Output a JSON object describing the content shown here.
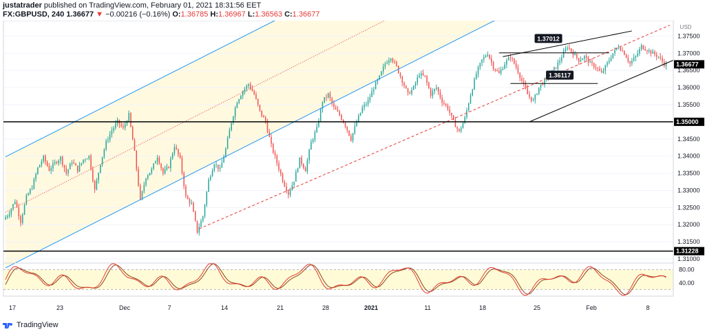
{
  "header": {
    "author": "justatrader",
    "published": "published on TradingView.com, February 01, 2021 18:31:56 EET",
    "symbol": "FX:GBPUSD, 240",
    "last": "1.36677",
    "change_arrow": "▼",
    "change": "−0.00216 (−0.16%)",
    "o_label": "O:",
    "o_value": "1.36785",
    "h_label": "H:",
    "h_value": "1.36967",
    "l_label": "L:",
    "l_value": "1.36563",
    "c_label": "C:",
    "c_value": "1.36677"
  },
  "brand": "TradingView",
  "colors": {
    "up": "#26a69a",
    "down": "#ef5350",
    "channel": "#2196f3",
    "channel_fill": "#fff9e0",
    "stoch_fill": "#fffbd6",
    "stoch_k": "#e53935",
    "stoch_d": "#8b4513",
    "dashed": "#e53935"
  },
  "chart_data": {
    "type": "candlestick",
    "symbol": "FX:GBPUSD",
    "interval": "240",
    "price_axis_unit": "USD",
    "y_ticks": [
      1.375,
      1.37,
      1.365,
      1.36,
      1.355,
      1.35,
      1.345,
      1.34,
      1.335,
      1.33,
      1.325,
      1.32,
      1.315,
      1.31
    ],
    "y_tick_labels": [
      "1.37500",
      "1.37000",
      "1.36500",
      "1.36000",
      "1.35500",
      "1.35000",
      "1.34500",
      "1.34000",
      "1.33500",
      "1.33000",
      "1.32500",
      "1.32000",
      "1.31500",
      "1.31000"
    ],
    "ylim": [
      1.3092,
      1.3795
    ],
    "x_ticks": [
      "17",
      "23",
      "Dec",
      "7",
      "14",
      "21",
      "28",
      "2021",
      "11",
      "18",
      "25",
      "Feb",
      "8"
    ],
    "price_path": [
      [
        0,
        1.3215
      ],
      [
        3,
        1.3235
      ],
      [
        6,
        1.327
      ],
      [
        9,
        1.321
      ],
      [
        12,
        1.328
      ],
      [
        15,
        1.331
      ],
      [
        18,
        1.3365
      ],
      [
        21,
        1.3395
      ],
      [
        24,
        1.336
      ],
      [
        27,
        1.338
      ],
      [
        30,
        1.3395
      ],
      [
        33,
        1.335
      ],
      [
        36,
        1.3385
      ],
      [
        39,
        1.336
      ],
      [
        42,
        1.339
      ],
      [
        45,
        1.34
      ],
      [
        48,
        1.33
      ],
      [
        51,
        1.338
      ],
      [
        54,
        1.344
      ],
      [
        57,
        1.3475
      ],
      [
        60,
        1.35
      ],
      [
        63,
        1.348
      ],
      [
        66,
        1.352
      ],
      [
        69,
        1.341
      ],
      [
        72,
        1.327
      ],
      [
        75,
        1.334
      ],
      [
        78,
        1.336
      ],
      [
        81,
        1.34
      ],
      [
        84,
        1.335
      ],
      [
        87,
        1.337
      ],
      [
        90,
        1.343
      ],
      [
        93,
        1.339
      ],
      [
        96,
        1.328
      ],
      [
        99,
        1.326
      ],
      [
        102,
        1.318
      ],
      [
        105,
        1.3225
      ],
      [
        108,
        1.333
      ],
      [
        111,
        1.338
      ],
      [
        114,
        1.336
      ],
      [
        117,
        1.342
      ],
      [
        120,
        1.35
      ],
      [
        123,
        1.356
      ],
      [
        126,
        1.359
      ],
      [
        129,
        1.361
      ],
      [
        132,
        1.358
      ],
      [
        135,
        1.353
      ],
      [
        138,
        1.35
      ],
      [
        141,
        1.343
      ],
      [
        144,
        1.338
      ],
      [
        147,
        1.333
      ],
      [
        150,
        1.329
      ],
      [
        153,
        1.333
      ],
      [
        156,
        1.339
      ],
      [
        159,
        1.336
      ],
      [
        162,
        1.344
      ],
      [
        165,
        1.348
      ],
      [
        168,
        1.356
      ],
      [
        171,
        1.358
      ],
      [
        174,
        1.354
      ],
      [
        177,
        1.352
      ],
      [
        180,
        1.349
      ],
      [
        183,
        1.345
      ],
      [
        186,
        1.35
      ],
      [
        189,
        1.354
      ],
      [
        192,
        1.356
      ],
      [
        195,
        1.36
      ],
      [
        198,
        1.363
      ],
      [
        201,
        1.367
      ],
      [
        204,
        1.369
      ],
      [
        207,
        1.366
      ],
      [
        210,
        1.362
      ],
      [
        213,
        1.358
      ],
      [
        216,
        1.36
      ],
      [
        219,
        1.364
      ],
      [
        222,
        1.363
      ],
      [
        225,
        1.358
      ],
      [
        228,
        1.36
      ],
      [
        231,
        1.356
      ],
      [
        234,
        1.354
      ],
      [
        237,
        1.35
      ],
      [
        240,
        1.347
      ],
      [
        243,
        1.351
      ],
      [
        246,
        1.358
      ],
      [
        249,
        1.364
      ],
      [
        252,
        1.368
      ],
      [
        255,
        1.37
      ],
      [
        258,
        1.366
      ],
      [
        261,
        1.364
      ],
      [
        264,
        1.367
      ],
      [
        267,
        1.369
      ],
      [
        270,
        1.366
      ],
      [
        273,
        1.362
      ],
      [
        276,
        1.358
      ],
      [
        279,
        1.356
      ],
      [
        282,
        1.36
      ],
      [
        285,
        1.362
      ],
      [
        288,
        1.364
      ],
      [
        291,
        1.366
      ],
      [
        294,
        1.369
      ],
      [
        297,
        1.372
      ],
      [
        300,
        1.37
      ],
      [
        303,
        1.368
      ],
      [
        306,
        1.369
      ],
      [
        309,
        1.367
      ],
      [
        312,
        1.366
      ],
      [
        315,
        1.364
      ],
      [
        318,
        1.367
      ],
      [
        321,
        1.37
      ],
      [
        324,
        1.372
      ],
      [
        327,
        1.37
      ],
      [
        330,
        1.367
      ],
      [
        333,
        1.369
      ],
      [
        336,
        1.372
      ],
      [
        339,
        1.371
      ],
      [
        342,
        1.37
      ],
      [
        345,
        1.369
      ],
      [
        348,
        1.3668
      ]
    ],
    "horizontal_levels": [
      {
        "price": 1.35,
        "label": "1.35000"
      },
      {
        "price": 1.31228,
        "label": "1.31228"
      }
    ],
    "current_price": {
      "price": 1.36677,
      "label": "1.36677"
    },
    "annotations": [
      {
        "text": "1.37012",
        "price": 1.37012
      },
      {
        "text": "1.36117",
        "price": 1.36117
      }
    ],
    "stochastic": {
      "levels": [
        80.0,
        40.0
      ],
      "level_labels": [
        "80.00",
        "40.00"
      ]
    }
  }
}
